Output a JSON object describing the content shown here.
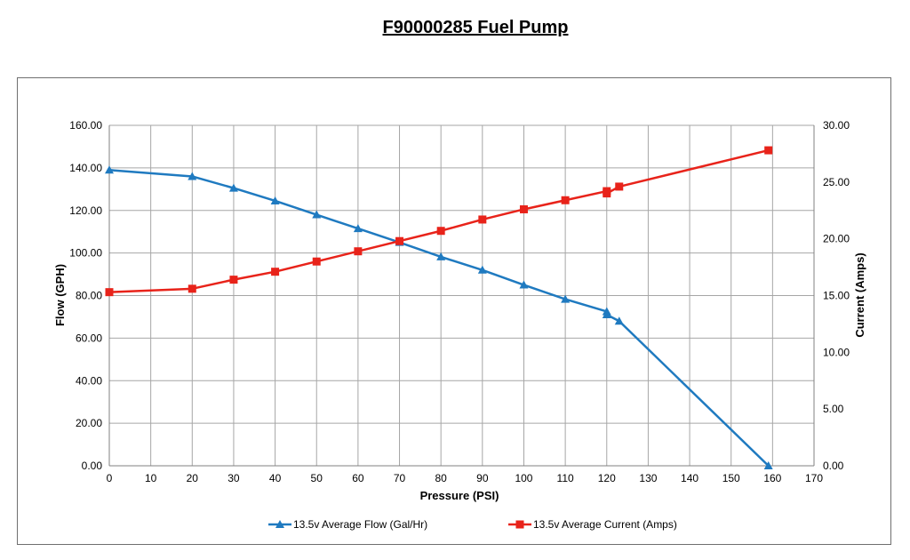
{
  "title": "F90000285 Fuel Pump",
  "chart_data": {
    "type": "line",
    "xlabel": "Pressure (PSI)",
    "ylabel": "Flow (GPH)",
    "y2label": "Current (Amps)",
    "xlim": [
      0,
      170
    ],
    "ylim": [
      0,
      160
    ],
    "y2lim": [
      0,
      30
    ],
    "xticks": [
      "0",
      "10",
      "20",
      "30",
      "40",
      "50",
      "60",
      "70",
      "80",
      "90",
      "100",
      "110",
      "120",
      "130",
      "140",
      "150",
      "160",
      "170"
    ],
    "yticks": [
      "0.00",
      "20.00",
      "40.00",
      "60.00",
      "80.00",
      "100.00",
      "120.00",
      "140.00",
      "160.00"
    ],
    "y2ticks": [
      "0.00",
      "5.00",
      "10.00",
      "15.00",
      "20.00",
      "25.00",
      "30.00"
    ],
    "grid": true,
    "legend": "bottom",
    "series": [
      {
        "name": "13.5v Average Flow (Gal/Hr)",
        "axis": "left",
        "color": "#1f7ac0",
        "marker": "triangle",
        "x": [
          0,
          20,
          30,
          40,
          50,
          60,
          70,
          80,
          90,
          100,
          110,
          120,
          120,
          123,
          159
        ],
        "y": [
          139,
          136,
          130.5,
          124.5,
          118,
          111.5,
          105,
          98.2,
          92,
          85,
          78.3,
          72.5,
          71,
          68,
          0
        ]
      },
      {
        "name": "13.5v Average Current (Amps)",
        "axis": "right",
        "color": "#e8231a",
        "marker": "square",
        "x": [
          0,
          20,
          30,
          40,
          50,
          60,
          70,
          80,
          90,
          100,
          110,
          120,
          120,
          123,
          159
        ],
        "y": [
          15.3,
          15.6,
          16.4,
          17.1,
          18.0,
          18.9,
          19.8,
          20.7,
          21.7,
          22.6,
          23.4,
          24.2,
          24.0,
          24.6,
          27.8
        ]
      }
    ]
  }
}
